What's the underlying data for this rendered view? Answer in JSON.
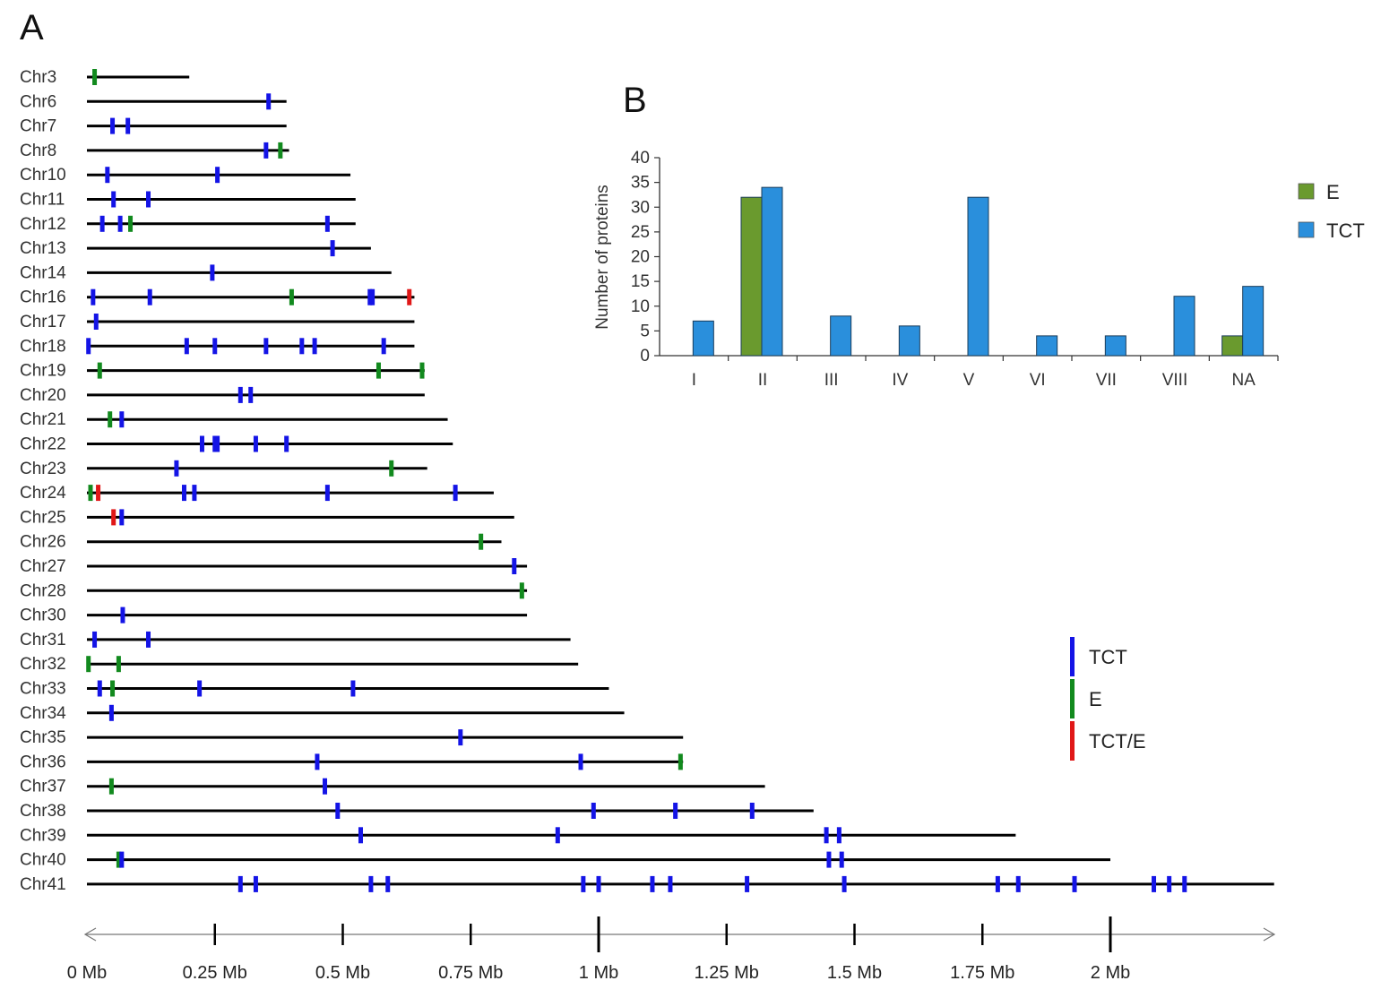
{
  "panel_a_label": "A",
  "panel_b_label": "B",
  "legend_a": [
    {
      "label": "TCT",
      "color": "#1414e6"
    },
    {
      "label": "E",
      "color": "#128a1e"
    },
    {
      "label": "TCT/E",
      "color": "#e01818"
    }
  ],
  "legend_b": [
    {
      "label": "E",
      "color": "#6a9a2e"
    },
    {
      "label": "TCT",
      "color": "#2a8fdc"
    }
  ],
  "chart_data": [
    {
      "type": "chromosome-map",
      "title": "",
      "x_axis": {
        "unit": "Mb",
        "range": [
          0,
          2.3
        ],
        "ticks": [
          {
            "value": 0,
            "label": "0 Mb"
          },
          {
            "value": 0.25,
            "label": "0.25 Mb"
          },
          {
            "value": 0.5,
            "label": "0.5 Mb"
          },
          {
            "value": 0.75,
            "label": "0.75 Mb"
          },
          {
            "value": 1,
            "label": "1 Mb"
          },
          {
            "value": 1.25,
            "label": "1.25 Mb"
          },
          {
            "value": 1.5,
            "label": "1.5 Mb"
          },
          {
            "value": 1.75,
            "label": "1.75 Mb"
          },
          {
            "value": 2,
            "label": "2 Mb"
          }
        ]
      },
      "chromosomes": [
        {
          "name": "Chr3",
          "length": 0.2,
          "markers": [
            {
              "pos": 0.015,
              "type": "E"
            }
          ]
        },
        {
          "name": "Chr6",
          "length": 0.39,
          "markers": [
            {
              "pos": 0.355,
              "type": "TCT"
            }
          ]
        },
        {
          "name": "Chr7",
          "length": 0.39,
          "markers": [
            {
              "pos": 0.05,
              "type": "TCT"
            },
            {
              "pos": 0.08,
              "type": "TCT"
            }
          ]
        },
        {
          "name": "Chr8",
          "length": 0.395,
          "markers": [
            {
              "pos": 0.35,
              "type": "TCT"
            },
            {
              "pos": 0.378,
              "type": "E"
            }
          ]
        },
        {
          "name": "Chr10",
          "length": 0.515,
          "markers": [
            {
              "pos": 0.04,
              "type": "TCT"
            },
            {
              "pos": 0.255,
              "type": "TCT"
            }
          ]
        },
        {
          "name": "Chr11",
          "length": 0.525,
          "markers": [
            {
              "pos": 0.052,
              "type": "TCT"
            },
            {
              "pos": 0.12,
              "type": "TCT"
            }
          ]
        },
        {
          "name": "Chr12",
          "length": 0.525,
          "markers": [
            {
              "pos": 0.03,
              "type": "TCT"
            },
            {
              "pos": 0.065,
              "type": "TCT"
            },
            {
              "pos": 0.085,
              "type": "E"
            },
            {
              "pos": 0.47,
              "type": "TCT"
            }
          ]
        },
        {
          "name": "Chr13",
          "length": 0.555,
          "markers": [
            {
              "pos": 0.48,
              "type": "TCT"
            }
          ]
        },
        {
          "name": "Chr14",
          "length": 0.595,
          "markers": [
            {
              "pos": 0.245,
              "type": "TCT"
            }
          ]
        },
        {
          "name": "Chr16",
          "length": 0.64,
          "markers": [
            {
              "pos": 0.012,
              "type": "TCT"
            },
            {
              "pos": 0.123,
              "type": "TCT"
            },
            {
              "pos": 0.4,
              "type": "E"
            },
            {
              "pos": 0.553,
              "type": "TCT"
            },
            {
              "pos": 0.558,
              "type": "TCT"
            },
            {
              "pos": 0.63,
              "type": "TCT/E"
            }
          ]
        },
        {
          "name": "Chr17",
          "length": 0.64,
          "markers": [
            {
              "pos": 0.018,
              "type": "TCT"
            }
          ]
        },
        {
          "name": "Chr18",
          "length": 0.64,
          "markers": [
            {
              "pos": 0.003,
              "type": "TCT"
            },
            {
              "pos": 0.195,
              "type": "TCT"
            },
            {
              "pos": 0.25,
              "type": "TCT"
            },
            {
              "pos": 0.35,
              "type": "TCT"
            },
            {
              "pos": 0.42,
              "type": "TCT"
            },
            {
              "pos": 0.445,
              "type": "TCT"
            },
            {
              "pos": 0.58,
              "type": "TCT"
            }
          ]
        },
        {
          "name": "Chr19",
          "length": 0.66,
          "markers": [
            {
              "pos": 0.025,
              "type": "E"
            },
            {
              "pos": 0.57,
              "type": "E"
            },
            {
              "pos": 0.655,
              "type": "E"
            }
          ]
        },
        {
          "name": "Chr20",
          "length": 0.66,
          "markers": [
            {
              "pos": 0.3,
              "type": "TCT"
            },
            {
              "pos": 0.32,
              "type": "TCT"
            }
          ]
        },
        {
          "name": "Chr21",
          "length": 0.705,
          "markers": [
            {
              "pos": 0.045,
              "type": "E"
            },
            {
              "pos": 0.068,
              "type": "TCT"
            }
          ]
        },
        {
          "name": "Chr22",
          "length": 0.715,
          "markers": [
            {
              "pos": 0.225,
              "type": "TCT"
            },
            {
              "pos": 0.25,
              "type": "TCT"
            },
            {
              "pos": 0.255,
              "type": "TCT"
            },
            {
              "pos": 0.33,
              "type": "TCT"
            },
            {
              "pos": 0.39,
              "type": "TCT"
            }
          ]
        },
        {
          "name": "Chr23",
          "length": 0.665,
          "markers": [
            {
              "pos": 0.175,
              "type": "TCT"
            },
            {
              "pos": 0.595,
              "type": "E"
            }
          ]
        },
        {
          "name": "Chr24",
          "length": 0.795,
          "markers": [
            {
              "pos": 0.007,
              "type": "E"
            },
            {
              "pos": 0.022,
              "type": "TCT/E"
            },
            {
              "pos": 0.19,
              "type": "TCT"
            },
            {
              "pos": 0.21,
              "type": "TCT"
            },
            {
              "pos": 0.47,
              "type": "TCT"
            },
            {
              "pos": 0.72,
              "type": "TCT"
            }
          ]
        },
        {
          "name": "Chr25",
          "length": 0.835,
          "markers": [
            {
              "pos": 0.052,
              "type": "TCT/E"
            },
            {
              "pos": 0.068,
              "type": "TCT"
            }
          ]
        },
        {
          "name": "Chr26",
          "length": 0.81,
          "markers": [
            {
              "pos": 0.77,
              "type": "E"
            }
          ]
        },
        {
          "name": "Chr27",
          "length": 0.86,
          "markers": [
            {
              "pos": 0.835,
              "type": "TCT"
            }
          ]
        },
        {
          "name": "Chr28",
          "length": 0.86,
          "markers": [
            {
              "pos": 0.85,
              "type": "E"
            }
          ]
        },
        {
          "name": "Chr30",
          "length": 0.86,
          "markers": [
            {
              "pos": 0.07,
              "type": "TCT"
            }
          ]
        },
        {
          "name": "Chr31",
          "length": 0.945,
          "markers": [
            {
              "pos": 0.015,
              "type": "TCT"
            },
            {
              "pos": 0.12,
              "type": "TCT"
            }
          ]
        },
        {
          "name": "Chr32",
          "length": 0.96,
          "markers": [
            {
              "pos": 0.003,
              "type": "E"
            },
            {
              "pos": 0.062,
              "type": "E"
            }
          ]
        },
        {
          "name": "Chr33",
          "length": 1.02,
          "markers": [
            {
              "pos": 0.025,
              "type": "TCT"
            },
            {
              "pos": 0.05,
              "type": "E"
            },
            {
              "pos": 0.22,
              "type": "TCT"
            },
            {
              "pos": 0.52,
              "type": "TCT"
            }
          ]
        },
        {
          "name": "Chr34",
          "length": 1.05,
          "markers": [
            {
              "pos": 0.048,
              "type": "TCT"
            }
          ]
        },
        {
          "name": "Chr35",
          "length": 1.165,
          "markers": [
            {
              "pos": 0.73,
              "type": "TCT"
            }
          ]
        },
        {
          "name": "Chr36",
          "length": 1.165,
          "markers": [
            {
              "pos": 0.45,
              "type": "TCT"
            },
            {
              "pos": 0.965,
              "type": "TCT"
            },
            {
              "pos": 1.16,
              "type": "E"
            }
          ]
        },
        {
          "name": "Chr37",
          "length": 1.325,
          "markers": [
            {
              "pos": 0.048,
              "type": "E"
            },
            {
              "pos": 0.465,
              "type": "TCT"
            }
          ]
        },
        {
          "name": "Chr38",
          "length": 1.42,
          "markers": [
            {
              "pos": 0.49,
              "type": "TCT"
            },
            {
              "pos": 0.99,
              "type": "TCT"
            },
            {
              "pos": 1.15,
              "type": "TCT"
            },
            {
              "pos": 1.3,
              "type": "TCT"
            }
          ]
        },
        {
          "name": "Chr39",
          "length": 1.815,
          "markers": [
            {
              "pos": 0.535,
              "type": "TCT"
            },
            {
              "pos": 0.92,
              "type": "TCT"
            },
            {
              "pos": 1.445,
              "type": "TCT"
            },
            {
              "pos": 1.47,
              "type": "TCT"
            }
          ]
        },
        {
          "name": "Chr40",
          "length": 2.0,
          "markers": [
            {
              "pos": 0.062,
              "type": "E"
            },
            {
              "pos": 0.068,
              "type": "TCT"
            },
            {
              "pos": 1.45,
              "type": "TCT"
            },
            {
              "pos": 1.475,
              "type": "TCT"
            }
          ]
        },
        {
          "name": "Chr41",
          "length": 2.32,
          "markers": [
            {
              "pos": 0.3,
              "type": "TCT"
            },
            {
              "pos": 0.33,
              "type": "TCT"
            },
            {
              "pos": 0.555,
              "type": "TCT"
            },
            {
              "pos": 0.588,
              "type": "TCT"
            },
            {
              "pos": 0.97,
              "type": "TCT"
            },
            {
              "pos": 1.0,
              "type": "TCT"
            },
            {
              "pos": 1.105,
              "type": "TCT"
            },
            {
              "pos": 1.14,
              "type": "TCT"
            },
            {
              "pos": 1.29,
              "type": "TCT"
            },
            {
              "pos": 1.48,
              "type": "TCT"
            },
            {
              "pos": 1.78,
              "type": "TCT"
            },
            {
              "pos": 1.82,
              "type": "TCT"
            },
            {
              "pos": 1.93,
              "type": "TCT"
            },
            {
              "pos": 2.085,
              "type": "TCT"
            },
            {
              "pos": 2.115,
              "type": "TCT"
            },
            {
              "pos": 2.145,
              "type": "TCT"
            }
          ]
        }
      ]
    },
    {
      "type": "bar",
      "title": "",
      "xlabel": "",
      "ylabel": "Number of proteins",
      "ylim": [
        0,
        40
      ],
      "yticks": [
        0,
        5,
        10,
        15,
        20,
        25,
        30,
        35,
        40
      ],
      "categories": [
        "I",
        "II",
        "III",
        "IV",
        "V",
        "VI",
        "VII",
        "VIII",
        "NA"
      ],
      "series": [
        {
          "name": "E",
          "color": "#6a9a2e",
          "values": [
            0,
            32,
            0,
            0,
            0,
            0,
            0,
            0,
            4
          ]
        },
        {
          "name": "TCT",
          "color": "#2a8fdc",
          "values": [
            7,
            34,
            8,
            6,
            32,
            4,
            4,
            12,
            14
          ]
        }
      ],
      "legend": "right"
    }
  ]
}
